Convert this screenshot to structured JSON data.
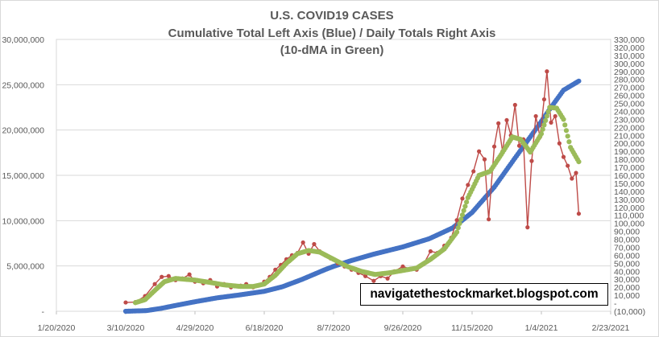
{
  "chart_data": {
    "type": "line",
    "title_lines": [
      "U.S. COVID19 CASES",
      "Cumulative Total Left Axis (Blue) / Daily Totals Right Axis",
      "(10-dMA in Green)"
    ],
    "annotation": "navigatethestockmarket.blogspot.com",
    "x_axis": {
      "start": "2020-01-20",
      "end": "2021-02-23",
      "tick_labels": [
        "1/20/2020",
        "3/10/2020",
        "4/29/2020",
        "6/18/2020",
        "8/7/2020",
        "9/26/2020",
        "11/15/2020",
        "1/4/2021",
        "2/23/2021"
      ],
      "tick_dates": [
        "2020-01-20",
        "2020-03-10",
        "2020-04-29",
        "2020-06-18",
        "2020-08-07",
        "2020-09-26",
        "2020-11-15",
        "2021-01-04",
        "2021-02-23"
      ]
    },
    "y_left": {
      "min": 0,
      "max": 30000000,
      "step": 5000000,
      "tick_labels": [
        "-",
        "5,000,000",
        "10,000,000",
        "15,000,000",
        "20,000,000",
        "25,000,000",
        "30,000,000"
      ]
    },
    "y_right": {
      "min": -10000,
      "max": 330000,
      "step": 10000,
      "tick_labels": [
        "(10,000)",
        "-",
        "10,000",
        "20,000",
        "30,000",
        "40,000",
        "50,000",
        "60,000",
        "70,000",
        "80,000",
        "90,000",
        "100,000",
        "110,000",
        "120,000",
        "130,000",
        "140,000",
        "150,000",
        "160,000",
        "170,000",
        "180,000",
        "190,000",
        "200,000",
        "210,000",
        "220,000",
        "230,000",
        "240,000",
        "250,000",
        "260,000",
        "270,000",
        "280,000",
        "290,000",
        "300,000",
        "310,000",
        "320,000",
        "330,000"
      ]
    },
    "series": [
      {
        "name": "Cumulative Total",
        "axis": "left",
        "color": "#4472c4",
        "style": "dots",
        "points": [
          {
            "date": "2020-03-10",
            "value": 0
          },
          {
            "date": "2020-03-25",
            "value": 70000
          },
          {
            "date": "2020-04-05",
            "value": 330000
          },
          {
            "date": "2020-04-15",
            "value": 640000
          },
          {
            "date": "2020-04-29",
            "value": 1050000
          },
          {
            "date": "2020-05-15",
            "value": 1480000
          },
          {
            "date": "2020-06-01",
            "value": 1820000
          },
          {
            "date": "2020-06-18",
            "value": 2200000
          },
          {
            "date": "2020-07-01",
            "value": 2700000
          },
          {
            "date": "2020-07-15",
            "value": 3500000
          },
          {
            "date": "2020-08-01",
            "value": 4600000
          },
          {
            "date": "2020-08-07",
            "value": 4950000
          },
          {
            "date": "2020-08-20",
            "value": 5600000
          },
          {
            "date": "2020-09-05",
            "value": 6300000
          },
          {
            "date": "2020-09-26",
            "value": 7100000
          },
          {
            "date": "2020-10-15",
            "value": 8000000
          },
          {
            "date": "2020-11-01",
            "value": 9200000
          },
          {
            "date": "2020-11-15",
            "value": 10900000
          },
          {
            "date": "2020-12-01",
            "value": 13700000
          },
          {
            "date": "2020-12-15",
            "value": 16700000
          },
          {
            "date": "2021-01-01",
            "value": 20300000
          },
          {
            "date": "2021-01-10",
            "value": 22300000
          },
          {
            "date": "2021-01-20",
            "value": 24400000
          },
          {
            "date": "2021-01-31",
            "value": 25400000
          }
        ]
      },
      {
        "name": "Daily Totals",
        "axis": "right",
        "color": "#be4b48",
        "style": "line-markers",
        "points": [
          {
            "date": "2020-03-10",
            "value": 1000
          },
          {
            "date": "2020-03-17",
            "value": 1500
          },
          {
            "date": "2020-03-24",
            "value": 9000
          },
          {
            "date": "2020-03-31",
            "value": 24000
          },
          {
            "date": "2020-04-05",
            "value": 33000
          },
          {
            "date": "2020-04-10",
            "value": 34000
          },
          {
            "date": "2020-04-15",
            "value": 29000
          },
          {
            "date": "2020-04-20",
            "value": 31000
          },
          {
            "date": "2020-04-25",
            "value": 36000
          },
          {
            "date": "2020-04-29",
            "value": 27000
          },
          {
            "date": "2020-05-05",
            "value": 25000
          },
          {
            "date": "2020-05-10",
            "value": 29000
          },
          {
            "date": "2020-05-15",
            "value": 21000
          },
          {
            "date": "2020-05-20",
            "value": 24000
          },
          {
            "date": "2020-05-25",
            "value": 20000
          },
          {
            "date": "2020-06-01",
            "value": 22000
          },
          {
            "date": "2020-06-05",
            "value": 24000
          },
          {
            "date": "2020-06-10",
            "value": 20000
          },
          {
            "date": "2020-06-15",
            "value": 23000
          },
          {
            "date": "2020-06-18",
            "value": 27000
          },
          {
            "date": "2020-06-22",
            "value": 33000
          },
          {
            "date": "2020-06-26",
            "value": 42000
          },
          {
            "date": "2020-06-30",
            "value": 48000
          },
          {
            "date": "2020-07-04",
            "value": 55000
          },
          {
            "date": "2020-07-08",
            "value": 60000
          },
          {
            "date": "2020-07-12",
            "value": 63000
          },
          {
            "date": "2020-07-16",
            "value": 76000
          },
          {
            "date": "2020-07-20",
            "value": 62000
          },
          {
            "date": "2020-07-24",
            "value": 74000
          },
          {
            "date": "2020-07-28",
            "value": 65000
          },
          {
            "date": "2020-08-01",
            "value": 60000
          },
          {
            "date": "2020-08-05",
            "value": 56000
          },
          {
            "date": "2020-08-10",
            "value": 50000
          },
          {
            "date": "2020-08-15",
            "value": 46000
          },
          {
            "date": "2020-08-20",
            "value": 42000
          },
          {
            "date": "2020-08-25",
            "value": 38000
          },
          {
            "date": "2020-08-30",
            "value": 34000
          },
          {
            "date": "2020-09-05",
            "value": 28000
          },
          {
            "date": "2020-09-10",
            "value": 34000
          },
          {
            "date": "2020-09-15",
            "value": 31000
          },
          {
            "date": "2020-09-20",
            "value": 40000
          },
          {
            "date": "2020-09-26",
            "value": 46000
          },
          {
            "date": "2020-10-01",
            "value": 43000
          },
          {
            "date": "2020-10-06",
            "value": 42000
          },
          {
            "date": "2020-10-11",
            "value": 49000
          },
          {
            "date": "2020-10-16",
            "value": 65000
          },
          {
            "date": "2020-10-21",
            "value": 63000
          },
          {
            "date": "2020-10-26",
            "value": 72000
          },
          {
            "date": "2020-10-31",
            "value": 82000
          },
          {
            "date": "2020-11-04",
            "value": 104000
          },
          {
            "date": "2020-11-08",
            "value": 131000
          },
          {
            "date": "2020-11-12",
            "value": 148000
          },
          {
            "date": "2020-11-16",
            "value": 165000
          },
          {
            "date": "2020-11-20",
            "value": 190000
          },
          {
            "date": "2020-11-24",
            "value": 180000
          },
          {
            "date": "2020-11-27",
            "value": 105000
          },
          {
            "date": "2020-12-01",
            "value": 196000
          },
          {
            "date": "2020-12-04",
            "value": 225000
          },
          {
            "date": "2020-12-07",
            "value": 190000
          },
          {
            "date": "2020-12-10",
            "value": 229000
          },
          {
            "date": "2020-12-13",
            "value": 210000
          },
          {
            "date": "2020-12-16",
            "value": 248000
          },
          {
            "date": "2020-12-19",
            "value": 197000
          },
          {
            "date": "2020-12-22",
            "value": 205000
          },
          {
            "date": "2020-12-25",
            "value": 95000
          },
          {
            "date": "2020-12-28",
            "value": 178000
          },
          {
            "date": "2020-12-31",
            "value": 234000
          },
          {
            "date": "2021-01-03",
            "value": 208000
          },
          {
            "date": "2021-01-06",
            "value": 255000
          },
          {
            "date": "2021-01-08",
            "value": 290000
          },
          {
            "date": "2021-01-11",
            "value": 226000
          },
          {
            "date": "2021-01-14",
            "value": 234000
          },
          {
            "date": "2021-01-17",
            "value": 200000
          },
          {
            "date": "2021-01-20",
            "value": 183000
          },
          {
            "date": "2021-01-23",
            "value": 172000
          },
          {
            "date": "2021-01-26",
            "value": 156000
          },
          {
            "date": "2021-01-29",
            "value": 163000
          },
          {
            "date": "2021-01-31",
            "value": 112000
          }
        ]
      },
      {
        "name": "10-dMA",
        "axis": "right",
        "color": "#9bbb59",
        "style": "dots",
        "points": [
          {
            "date": "2020-03-17",
            "value": 700
          },
          {
            "date": "2020-03-24",
            "value": 4500
          },
          {
            "date": "2020-03-31",
            "value": 16000
          },
          {
            "date": "2020-04-07",
            "value": 27000
          },
          {
            "date": "2020-04-15",
            "value": 31000
          },
          {
            "date": "2020-04-22",
            "value": 30000
          },
          {
            "date": "2020-04-29",
            "value": 29000
          },
          {
            "date": "2020-05-10",
            "value": 26000
          },
          {
            "date": "2020-05-20",
            "value": 23000
          },
          {
            "date": "2020-06-01",
            "value": 21000
          },
          {
            "date": "2020-06-10",
            "value": 21000
          },
          {
            "date": "2020-06-18",
            "value": 24000
          },
          {
            "date": "2020-06-26",
            "value": 35000
          },
          {
            "date": "2020-07-04",
            "value": 50000
          },
          {
            "date": "2020-07-12",
            "value": 62000
          },
          {
            "date": "2020-07-20",
            "value": 66000
          },
          {
            "date": "2020-07-28",
            "value": 64000
          },
          {
            "date": "2020-08-07",
            "value": 55000
          },
          {
            "date": "2020-08-17",
            "value": 46000
          },
          {
            "date": "2020-08-27",
            "value": 40000
          },
          {
            "date": "2020-09-06",
            "value": 36000
          },
          {
            "date": "2020-09-16",
            "value": 38000
          },
          {
            "date": "2020-09-26",
            "value": 41000
          },
          {
            "date": "2020-10-06",
            "value": 44000
          },
          {
            "date": "2020-10-16",
            "value": 55000
          },
          {
            "date": "2020-10-26",
            "value": 68000
          },
          {
            "date": "2020-11-04",
            "value": 89000
          },
          {
            "date": "2020-11-12",
            "value": 132000
          },
          {
            "date": "2020-11-20",
            "value": 160000
          },
          {
            "date": "2020-11-28",
            "value": 165000
          },
          {
            "date": "2020-12-06",
            "value": 186000
          },
          {
            "date": "2020-12-14",
            "value": 208000
          },
          {
            "date": "2020-12-20",
            "value": 205000
          },
          {
            "date": "2020-12-27",
            "value": 189000
          },
          {
            "date": "2021-01-04",
            "value": 212000
          },
          {
            "date": "2021-01-10",
            "value": 245000
          },
          {
            "date": "2021-01-15",
            "value": 244000
          },
          {
            "date": "2021-01-20",
            "value": 230000
          },
          {
            "date": "2021-01-25",
            "value": 195000
          },
          {
            "date": "2021-01-31",
            "value": 177000
          }
        ]
      }
    ]
  }
}
